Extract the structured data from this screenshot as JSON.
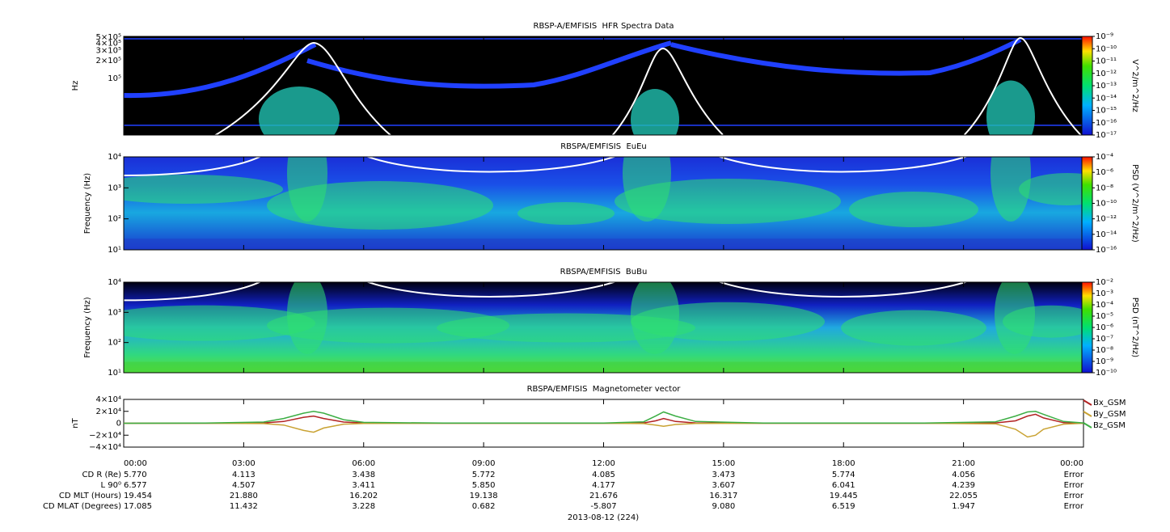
{
  "chart_data": [
    {
      "type": "spectrogram",
      "title": "RBSP-A/EMFISIS  HFR Spectra Data",
      "ylabel": "Hz",
      "log": true,
      "ylim": [
        11000,
        520000
      ],
      "yticks": [
        {
          "value": 500000,
          "label": "5×10⁵"
        },
        {
          "value": 400000,
          "label": "4×10⁵"
        },
        {
          "value": 300000,
          "label": "3×10⁵"
        },
        {
          "value": 200000,
          "label": "2×10⁵"
        },
        {
          "value": 100000,
          "label": "10⁵"
        }
      ],
      "colorbar_label": "V^2/m^2/Hz",
      "clim": [
        1e-17,
        1e-09
      ],
      "cticks": [
        {
          "value": 1e-09,
          "label": "10⁻⁹"
        },
        {
          "value": 1e-10,
          "label": "10⁻¹⁰"
        },
        {
          "value": 1e-11,
          "label": "10⁻¹¹"
        },
        {
          "value": 1e-12,
          "label": "10⁻¹²"
        },
        {
          "value": 1e-13,
          "label": "10⁻¹³"
        },
        {
          "value": 1e-14,
          "label": "10⁻¹⁴"
        },
        {
          "value": 1e-15,
          "label": "10⁻¹⁵"
        },
        {
          "value": 1e-16,
          "label": "10⁻¹⁶"
        },
        {
          "value": 1e-17,
          "label": "10⁻¹⁷"
        }
      ]
    },
    {
      "type": "spectrogram",
      "title": "RBSPA/EMFISIS  EuEu",
      "ylabel": "Frequency (Hz)",
      "log": true,
      "ylim": [
        10,
        10000
      ],
      "yticks": [
        {
          "value": 10000,
          "label": "10⁴"
        },
        {
          "value": 1000,
          "label": "10³"
        },
        {
          "value": 100,
          "label": "10²"
        },
        {
          "value": 10,
          "label": "10¹"
        }
      ],
      "colorbar_label": "PSD (V^2/m^2/Hz)",
      "clim": [
        1e-16,
        0.0001
      ],
      "cticks": [
        {
          "value": 0.0001,
          "label": "10⁻⁴"
        },
        {
          "value": 1e-06,
          "label": "10⁻⁶"
        },
        {
          "value": 1e-08,
          "label": "10⁻⁸"
        },
        {
          "value": 1e-10,
          "label": "10⁻¹⁰"
        },
        {
          "value": 1e-12,
          "label": "10⁻¹²"
        },
        {
          "value": 1e-14,
          "label": "10⁻¹⁴"
        },
        {
          "value": 1e-16,
          "label": "10⁻¹⁶"
        }
      ]
    },
    {
      "type": "spectrogram",
      "title": "RBSPA/EMFISIS  BuBu",
      "ylabel": "Frequency (Hz)",
      "log": true,
      "ylim": [
        10,
        10000
      ],
      "yticks": [
        {
          "value": 10000,
          "label": "10⁴"
        },
        {
          "value": 1000,
          "label": "10³"
        },
        {
          "value": 100,
          "label": "10²"
        },
        {
          "value": 10,
          "label": "10¹"
        }
      ],
      "colorbar_label": "PSD (nT^2/Hz)",
      "clim": [
        1e-10,
        0.01
      ],
      "cticks": [
        {
          "value": 0.01,
          "label": "10⁻²"
        },
        {
          "value": 0.001,
          "label": "10⁻³"
        },
        {
          "value": 0.0001,
          "label": "10⁻⁴"
        },
        {
          "value": 1e-05,
          "label": "10⁻⁵"
        },
        {
          "value": 1e-06,
          "label": "10⁻⁶"
        },
        {
          "value": 1e-07,
          "label": "10⁻⁷"
        },
        {
          "value": 1e-08,
          "label": "10⁻⁸"
        },
        {
          "value": 1e-09,
          "label": "10⁻⁹"
        },
        {
          "value": 1e-10,
          "label": "10⁻¹⁰"
        }
      ]
    },
    {
      "type": "line",
      "title": "RBSPA/EMFISIS  Magnetometer vector",
      "ylabel": "nT",
      "ylim": [
        -40000,
        40000
      ],
      "yticks": [
        {
          "value": 40000,
          "label": "4×10⁴"
        },
        {
          "value": 20000,
          "label": "2×10⁴"
        },
        0,
        {
          "value": -20000,
          "label": "−2×10⁴"
        },
        {
          "value": -40000,
          "label": "−4×10⁴"
        }
      ],
      "xlim": [
        0,
        24
      ],
      "xticks": [
        {
          "value": 0,
          "label": "00:00"
        },
        {
          "value": 3,
          "label": "03:00"
        },
        {
          "value": 6,
          "label": "06:00"
        },
        {
          "value": 9,
          "label": "09:00"
        },
        {
          "value": 12,
          "label": "12:00"
        },
        {
          "value": 15,
          "label": "15:00"
        },
        {
          "value": 18,
          "label": "18:00"
        },
        {
          "value": 21,
          "label": "21:00"
        },
        {
          "value": 24,
          "label": "00:00"
        }
      ],
      "x": [
        0,
        2,
        3.5,
        4,
        4.5,
        4.75,
        5,
        5.5,
        6,
        8,
        12,
        13,
        13.3,
        13.5,
        13.8,
        14.3,
        16,
        20,
        21.8,
        22.3,
        22.6,
        22.8,
        23,
        23.5,
        24
      ],
      "series": [
        {
          "name": "Bx_GSM",
          "color": "#b22222",
          "values": [
            0,
            0,
            500,
            3000,
            10000,
            12000,
            8000,
            2000,
            500,
            0,
            0,
            500,
            4000,
            8000,
            3000,
            500,
            0,
            0,
            500,
            4000,
            12000,
            15000,
            9000,
            1000,
            0
          ]
        },
        {
          "name": "By_GSM",
          "color": "#c9a232",
          "values": [
            0,
            0,
            -500,
            -3000,
            -12000,
            -15000,
            -8000,
            -1500,
            -300,
            0,
            0,
            -500,
            -3000,
            -5000,
            -2000,
            -300,
            0,
            0,
            -1000,
            -10000,
            -23000,
            -20000,
            -10000,
            -1500,
            0
          ]
        },
        {
          "name": "Bz_GSM",
          "color": "#3cae44",
          "values": [
            0,
            300,
            2000,
            8000,
            17000,
            20000,
            17000,
            6000,
            1500,
            300,
            300,
            2500,
            12000,
            19000,
            12000,
            3000,
            300,
            300,
            2500,
            12000,
            19000,
            20000,
            15000,
            3000,
            500
          ]
        }
      ],
      "ephemeris": [
        {
          "label": "CD R (Re)",
          "values": [
            "5.770",
            "4.113",
            "3.438",
            "5.772",
            "4.085",
            "3.473",
            "5.774",
            "4.056",
            "Error"
          ]
        },
        {
          "label": "L 90⁰",
          "values": [
            "6.577",
            "4.507",
            "3.411",
            "5.850",
            "4.177",
            "3.607",
            "6.041",
            "4.239",
            "Error"
          ]
        },
        {
          "label": "CD MLT (Hours)",
          "values": [
            "19.454",
            "21.880",
            "16.202",
            "19.138",
            "21.676",
            "16.317",
            "19.445",
            "22.055",
            "Error"
          ]
        },
        {
          "label": "CD MLAT (Degrees)",
          "values": [
            "17.085",
            "11.432",
            "3.228",
            "0.682",
            "-5.807",
            "9.080",
            "6.519",
            "1.947",
            "Error"
          ]
        }
      ],
      "xlabel": "2013-08-12 (224)"
    }
  ]
}
